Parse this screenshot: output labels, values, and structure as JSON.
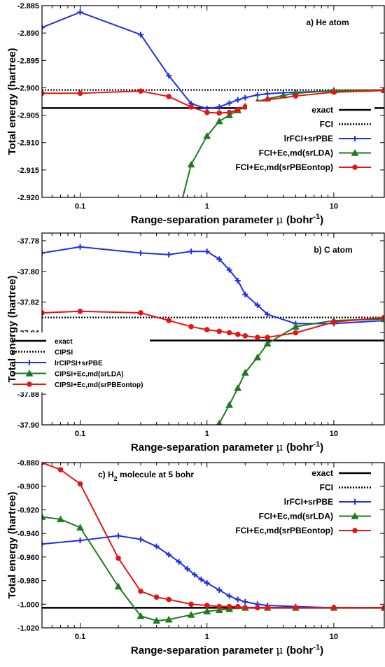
{
  "chart_data": [
    {
      "type": "line",
      "panel_label": "a) He atom",
      "xlabel": "Range-separation parameter",
      "xlabel_mu": "μ",
      "xlabel_unit": "(bohr",
      "xlabel_unit_exp": "-1",
      "xlabel_unit_close": ")",
      "ylabel": "Total energy (hartree)",
      "xscale": "log",
      "xlim": [
        0.05,
        25
      ],
      "ylim": [
        -2.92,
        -2.885
      ],
      "xticks": [
        0.1,
        1,
        10
      ],
      "xtick_labels": [
        "0.1",
        "1",
        "10"
      ],
      "yticks": [
        -2.885,
        -2.89,
        -2.895,
        -2.9,
        -2.905,
        -2.91,
        -2.915,
        -2.92
      ],
      "ytick_labels": [
        "-2.885",
        "-2.890",
        "-2.895",
        "-2.900",
        "-2.905",
        "-2.910",
        "-2.915",
        "-2.920"
      ],
      "legend_position": "bottom-right",
      "hlines": [
        {
          "name": "exact",
          "y": -2.9037,
          "color": "#000000",
          "style": "solid"
        },
        {
          "name": "FCI",
          "y": -2.9004,
          "color": "#000000",
          "style": "dotted"
        }
      ],
      "series": [
        {
          "name": "lrFCI+srPBE",
          "color": "#1f2fe6",
          "marker": "plus",
          "x": [
            0.05,
            0.1,
            0.3,
            0.5,
            0.75,
            1.0,
            1.25,
            1.5,
            1.75,
            2,
            2.5,
            3,
            4,
            5,
            10,
            25
          ],
          "y": [
            -2.889,
            -2.8862,
            -2.8903,
            -2.8978,
            -2.9029,
            -2.9038,
            -2.9035,
            -2.9028,
            -2.9022,
            -2.9018,
            -2.9013,
            -2.9011,
            -2.9009,
            -2.9008,
            -2.9006,
            -2.9004
          ]
        },
        {
          "name": "FCI+Ec,md(srLDA)",
          "color": "#1d7a1d",
          "marker": "triangle",
          "x": [
            0.5,
            0.75,
            1.0,
            1.25,
            1.5,
            1.75,
            2,
            2.5,
            3,
            4,
            5,
            10,
            25
          ],
          "y": [
            -2.93,
            -2.914,
            -2.9088,
            -2.9061,
            -2.905,
            -2.9041,
            -2.9034,
            -2.9025,
            -2.902,
            -2.9014,
            -2.901,
            -2.9005,
            -2.9004
          ]
        },
        {
          "name": "FCI+Ec,md(srPBEontop)",
          "color": "#e61414",
          "marker": "circle",
          "x": [
            0.05,
            0.1,
            0.3,
            0.5,
            0.75,
            1.0,
            1.25,
            1.5,
            1.75,
            2,
            2.5,
            3,
            5,
            10,
            25
          ],
          "y": [
            -2.901,
            -2.901,
            -2.9006,
            -2.9016,
            -2.9035,
            -2.9045,
            -2.9046,
            -2.9045,
            -2.904,
            -2.9035,
            -2.9028,
            -2.9022,
            -2.9015,
            -2.9008,
            -2.9005
          ]
        }
      ]
    },
    {
      "type": "line",
      "panel_label": "b) C atom",
      "xlabel": "Range-separation parameter",
      "xlabel_mu": "μ",
      "xlabel_unit": "(bohr",
      "xlabel_unit_exp": "-1",
      "xlabel_unit_close": ")",
      "ylabel": "Total energy (hartree)",
      "xscale": "log",
      "xlim": [
        0.05,
        25
      ],
      "ylim": [
        -37.9,
        -37.775
      ],
      "xticks": [
        0.1,
        1,
        10
      ],
      "xtick_labels": [
        "0.1",
        "1",
        "10"
      ],
      "yticks": [
        -37.78,
        -37.8,
        -37.82,
        -37.84,
        -37.86,
        -37.88,
        -37.9
      ],
      "ytick_labels": [
        "-37.78",
        "-37.80",
        "-37.82",
        "-37.84",
        "-37.86",
        "-37.88",
        "-37.90"
      ],
      "legend_position": "bottom-left",
      "hlines": [
        {
          "name": "exact",
          "y": -37.845,
          "color": "#000000",
          "style": "solid"
        },
        {
          "name": "CIPSI",
          "y": -37.83,
          "color": "#000000",
          "style": "dotted"
        }
      ],
      "series": [
        {
          "name": "lrCIPSI+srPBE",
          "color": "#1f2fe6",
          "marker": "plus",
          "x": [
            0.05,
            0.1,
            0.3,
            0.5,
            0.75,
            1.0,
            1.25,
            1.5,
            1.75,
            2,
            2.5,
            3,
            5,
            10,
            25
          ],
          "y": [
            -37.788,
            -37.784,
            -37.788,
            -37.789,
            -37.787,
            -37.787,
            -37.792,
            -37.799,
            -37.806,
            -37.815,
            -37.822,
            -37.828,
            -37.834,
            -37.834,
            -37.832
          ]
        },
        {
          "name": "CIPSI+Ec,md(srLDA)",
          "color": "#1d7a1d",
          "marker": "triangle",
          "x": [
            1.0,
            1.25,
            1.5,
            1.75,
            2,
            2.5,
            3,
            5,
            10,
            25
          ],
          "y": [
            -37.905,
            -37.899,
            -37.887,
            -37.876,
            -37.866,
            -37.856,
            -37.847,
            -37.836,
            -37.832,
            -37.831
          ]
        },
        {
          "name": "CIPSI+Ec,md(srPBEontop)",
          "color": "#e61414",
          "marker": "circle",
          "x": [
            0.05,
            0.1,
            0.3,
            0.5,
            0.75,
            1.0,
            1.25,
            1.5,
            1.75,
            2,
            2.5,
            3,
            5,
            10,
            25
          ],
          "y": [
            -37.827,
            -37.826,
            -37.827,
            -37.832,
            -37.836,
            -37.838,
            -37.839,
            -37.84,
            -37.841,
            -37.842,
            -37.843,
            -37.843,
            -37.84,
            -37.833,
            -37.83
          ]
        }
      ]
    },
    {
      "type": "line",
      "panel_label_pre": "c) H",
      "panel_label_sub": "2",
      "panel_label_post": " molecule at 5 bohr",
      "xlabel": "Range-separation parameter",
      "xlabel_mu": "μ",
      "xlabel_unit": "(bohr",
      "xlabel_unit_exp": "-1",
      "xlabel_unit_close": ")",
      "ylabel": "Total energy (hartree)",
      "xscale": "log",
      "xlim": [
        0.05,
        25
      ],
      "ylim": [
        -1.02,
        -0.88
      ],
      "xticks": [
        0.1,
        1,
        10
      ],
      "xtick_labels": [
        "0.1",
        "1",
        "10"
      ],
      "yticks": [
        -0.88,
        -0.9,
        -0.92,
        -0.94,
        -0.96,
        -0.98,
        -1.0,
        -1.02
      ],
      "ytick_labels": [
        "-0.880",
        "-0.900",
        "-0.920",
        "-0.940",
        "-0.960",
        "-0.980",
        "-1.000",
        "-1.020"
      ],
      "legend_position": "top-right",
      "hlines": [
        {
          "name": "exact",
          "y": -1.003,
          "color": "#000000",
          "style": "solid"
        },
        {
          "name": "FCI",
          "y": -1.003,
          "color": "#000000",
          "style": "dotted"
        }
      ],
      "series": [
        {
          "name": "lrFCI+srPBE",
          "color": "#1f2fe6",
          "marker": "plus",
          "x": [
            0.05,
            0.1,
            0.2,
            0.3,
            0.4,
            0.5,
            0.6,
            0.7,
            0.8,
            0.9,
            1.0,
            1.25,
            1.5,
            1.75,
            2,
            2.5,
            3,
            5,
            10,
            25
          ],
          "y": [
            -0.949,
            -0.946,
            -0.942,
            -0.945,
            -0.951,
            -0.958,
            -0.964,
            -0.97,
            -0.975,
            -0.979,
            -0.982,
            -0.988,
            -0.993,
            -0.996,
            -0.998,
            -1.0,
            -1.001,
            -1.002,
            -1.003,
            -1.003
          ]
        },
        {
          "name": "FCI+Ec,md(srLDA)",
          "color": "#1d7a1d",
          "marker": "triangle",
          "x": [
            0.05,
            0.07,
            0.1,
            0.2,
            0.3,
            0.4,
            0.5,
            0.75,
            1.0,
            1.25,
            1.5,
            2,
            3,
            5,
            10,
            25
          ],
          "y": [
            -0.926,
            -0.928,
            -0.935,
            -0.985,
            -1.01,
            -1.014,
            -1.013,
            -1.009,
            -1.006,
            -1.005,
            -1.004,
            -1.003,
            -1.003,
            -1.003,
            -1.003,
            -1.003
          ]
        },
        {
          "name": "FCI+Ec,md(srPBEontop)",
          "color": "#e61414",
          "marker": "circle",
          "x": [
            0.05,
            0.07,
            0.1,
            0.2,
            0.3,
            0.4,
            0.5,
            0.75,
            1.0,
            1.25,
            1.5,
            1.75,
            2,
            2.5,
            3,
            5,
            10,
            25
          ],
          "y": [
            -0.88,
            -0.886,
            -0.898,
            -0.961,
            -0.989,
            -0.994,
            -0.996,
            -1.0,
            -1.001,
            -1.002,
            -1.002,
            -1.002,
            -1.003,
            -1.003,
            -1.003,
            -1.003,
            -1.003,
            -1.003
          ]
        }
      ]
    }
  ]
}
